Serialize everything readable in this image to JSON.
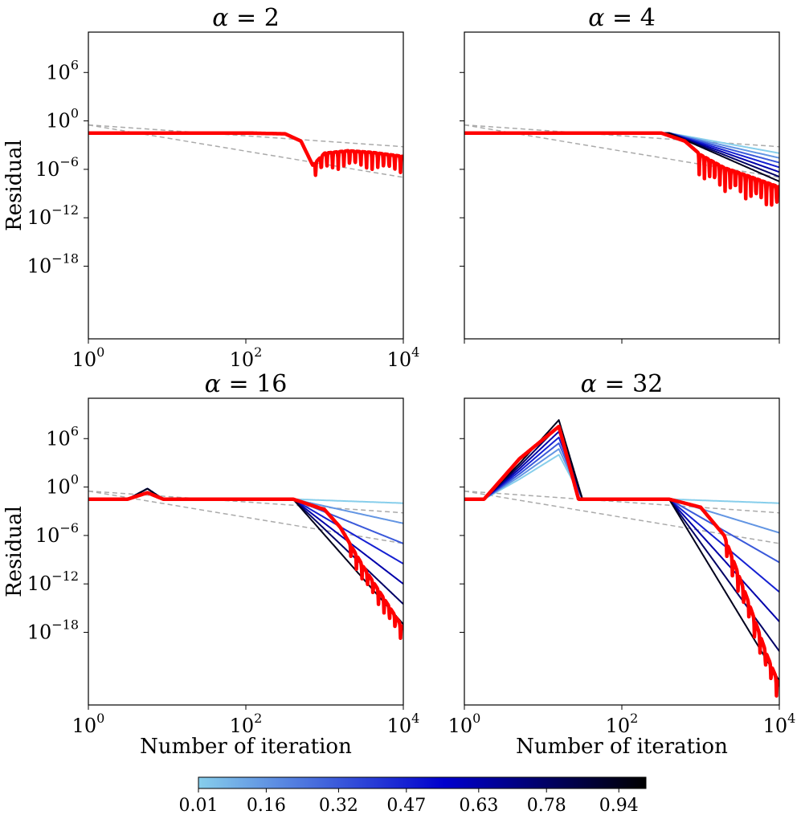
{
  "chart_data": [
    {
      "type": "line",
      "title": "α = 2",
      "title_symbol": "α",
      "title_rest": " = 2",
      "xlabel": "",
      "ylabel": "Residual",
      "xscale": "log",
      "yscale": "log",
      "xlim_log10": [
        0,
        4
      ],
      "ylim_log10": [
        -27,
        11
      ],
      "xticks": [
        {
          "base": "10",
          "exp": "0"
        },
        {
          "base": "10",
          "exp": "2"
        },
        {
          "base": "10",
          "exp": "4"
        }
      ],
      "yticks": [
        {
          "base": "10",
          "exp": "6"
        },
        {
          "base": "10",
          "exp": "0"
        },
        {
          "base": "10",
          "exp": "−6"
        },
        {
          "base": "10",
          "exp": "−12"
        },
        {
          "base": "10",
          "exp": "−18"
        }
      ],
      "reference_lines": [
        {
          "name": "ref-1",
          "x_log10": [
            0,
            4
          ],
          "y_log10": [
            -0.5,
            -3.2
          ]
        },
        {
          "name": "ref-2",
          "x_log10": [
            0,
            4
          ],
          "y_log10": [
            -0.5,
            -7.0
          ]
        }
      ],
      "colorbar_params": [],
      "highlight": {
        "name": "1.0",
        "color": "#ff0000",
        "points_log10": [
          [
            0,
            -1.5
          ],
          [
            2.0,
            -1.5
          ],
          [
            2.5,
            -1.6
          ],
          [
            2.7,
            -2.5
          ],
          [
            2.85,
            -5.5
          ],
          [
            3.0,
            -4.0
          ],
          [
            3.3,
            -3.7
          ],
          [
            3.6,
            -3.9
          ],
          [
            4.0,
            -4.4
          ]
        ],
        "dips": {
          "start": 2.85,
          "end": 4.0,
          "count": 16,
          "depth": 2.2
        }
      }
    },
    {
      "type": "line",
      "title": "α = 4",
      "title_symbol": "α",
      "title_rest": " = 4",
      "xlabel": "",
      "ylabel": "",
      "xscale": "log",
      "yscale": "log",
      "xlim_log10": [
        0,
        4
      ],
      "ylim_log10": [
        -27,
        11
      ],
      "xticks": [],
      "yticks": [],
      "reference_lines": [
        {
          "name": "ref-1",
          "x_log10": [
            0,
            4
          ],
          "y_log10": [
            -0.5,
            -3.2
          ]
        },
        {
          "name": "ref-2",
          "x_log10": [
            0,
            4
          ],
          "y_log10": [
            -0.5,
            -7.0
          ]
        }
      ],
      "colorbar_params": [
        0.01,
        0.16,
        0.32,
        0.47,
        0.63,
        0.78,
        0.94
      ],
      "family": {
        "x_log10": [
          0,
          2.6,
          4
        ],
        "y_start": -1.5,
        "y_end_first": -4.0,
        "y_end_last": -7.5
      },
      "highlight": {
        "name": "1.0",
        "color": "#ff0000",
        "points_log10": [
          [
            0,
            -1.5
          ],
          [
            2.5,
            -1.5
          ],
          [
            2.8,
            -2.5
          ],
          [
            3.0,
            -4.2
          ],
          [
            3.3,
            -5.8
          ],
          [
            3.6,
            -6.8
          ],
          [
            4.0,
            -8.2
          ]
        ],
        "dips": {
          "start": 2.95,
          "end": 4.0,
          "count": 16,
          "depth": 3.0
        }
      }
    },
    {
      "type": "line",
      "title": "α = 16",
      "title_symbol": "α",
      "title_rest": " = 16",
      "xlabel": "Number of iteration",
      "ylabel": "Residual",
      "xscale": "log",
      "yscale": "log",
      "xlim_log10": [
        0,
        4
      ],
      "ylim_log10": [
        -27,
        11
      ],
      "xticks": [
        {
          "base": "10",
          "exp": "0"
        },
        {
          "base": "10",
          "exp": "2"
        },
        {
          "base": "10",
          "exp": "4"
        }
      ],
      "yticks": [
        {
          "base": "10",
          "exp": "6"
        },
        {
          "base": "10",
          "exp": "0"
        },
        {
          "base": "10",
          "exp": "−6"
        },
        {
          "base": "10",
          "exp": "−12"
        },
        {
          "base": "10",
          "exp": "−18"
        }
      ],
      "reference_lines": [
        {
          "name": "ref-1",
          "x_log10": [
            0,
            4
          ],
          "y_log10": [
            -0.5,
            -3.2
          ]
        },
        {
          "name": "ref-2",
          "x_log10": [
            0,
            4
          ],
          "y_log10": [
            -0.5,
            -7.0
          ]
        }
      ],
      "colorbar_params": [
        0.01,
        0.16,
        0.32,
        0.47,
        0.63,
        0.78,
        0.94
      ],
      "family": {
        "x_log10": [
          0,
          0.5,
          0.75,
          0.95,
          2.6,
          4
        ],
        "y_start": -1.5,
        "y_bump": -0.2,
        "y_end_first": -2.0,
        "y_end_last": -17.0
      },
      "highlight": {
        "name": "1.0",
        "color": "#ff0000",
        "points_log10": [
          [
            0,
            -1.5
          ],
          [
            0.5,
            -1.5
          ],
          [
            0.75,
            -0.7
          ],
          [
            0.95,
            -1.5
          ],
          [
            2.6,
            -1.5
          ],
          [
            3.0,
            -2.8
          ],
          [
            3.2,
            -5.0
          ],
          [
            3.5,
            -10.0
          ],
          [
            3.8,
            -14.5
          ],
          [
            4.0,
            -17.5
          ]
        ],
        "dips": {
          "start": 3.3,
          "end": 4.0,
          "count": 10,
          "depth": 2.0
        }
      }
    },
    {
      "type": "line",
      "title": "α = 32",
      "title_symbol": "α",
      "title_rest": " = 32",
      "xlabel": "Number of iteration",
      "ylabel": "",
      "xscale": "log",
      "yscale": "log",
      "xlim_log10": [
        0,
        4
      ],
      "ylim_log10": [
        -27,
        11
      ],
      "xticks": [
        {
          "base": "10",
          "exp": "0"
        },
        {
          "base": "10",
          "exp": "2"
        },
        {
          "base": "10",
          "exp": "4"
        }
      ],
      "yticks": [],
      "reference_lines": [
        {
          "name": "ref-1",
          "x_log10": [
            0,
            4
          ],
          "y_log10": [
            -0.5,
            -3.2
          ]
        },
        {
          "name": "ref-2",
          "x_log10": [
            0,
            4
          ],
          "y_log10": [
            -0.5,
            -7.0
          ]
        }
      ],
      "colorbar_params": [
        0.01,
        0.16,
        0.32,
        0.47,
        0.63,
        0.78,
        0.94
      ],
      "family": {
        "x_log10": [
          0,
          0.25,
          0.7,
          1.2,
          1.5,
          2.6,
          4
        ],
        "y_start": -1.5,
        "peak_first": 4.0,
        "peak_last": 8.3,
        "y_end_first": -2.0,
        "y_end_last": -24.0
      },
      "highlight": {
        "name": "1.0",
        "color": "#ff0000",
        "points_log10": [
          [
            0,
            -1.5
          ],
          [
            0.25,
            -1.5
          ],
          [
            0.7,
            3.5
          ],
          [
            1.2,
            7.5
          ],
          [
            1.45,
            -1.5
          ],
          [
            2.6,
            -1.5
          ],
          [
            3.0,
            -2.5
          ],
          [
            3.3,
            -6.0
          ],
          [
            3.6,
            -14.0
          ],
          [
            3.85,
            -21.0
          ],
          [
            4.0,
            -24.5
          ]
        ],
        "dips": {
          "start": 3.3,
          "end": 4.0,
          "count": 10,
          "depth": 2.5
        }
      }
    }
  ],
  "colorbar": {
    "ticks": [
      "0.01",
      "0.16",
      "0.32",
      "0.47",
      "0.63",
      "0.78",
      "0.94"
    ],
    "range": [
      0.01,
      1.0
    ],
    "colors": [
      "#87ceeb",
      "#0000cd",
      "#000000"
    ]
  }
}
